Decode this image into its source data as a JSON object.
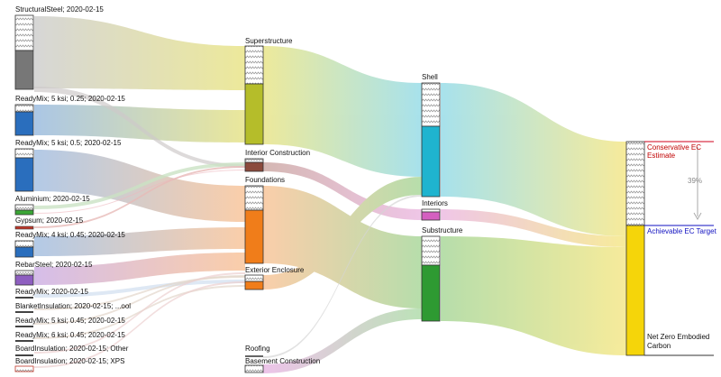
{
  "sources": [
    {
      "id": "s0",
      "label": "StructuralSteel; 2020-02-15",
      "color": "#777777"
    },
    {
      "id": "s1",
      "label": "ReadyMix; 5 ksi; 0.25; 2020-02-15",
      "color": "#2a6ebd"
    },
    {
      "id": "s2",
      "label": "ReadyMix; 5 ksi; 0.5; 2020-02-15",
      "color": "#2a6ebd"
    },
    {
      "id": "s3",
      "label": "Aluminium; 2020-02-15",
      "color": "#3aa635"
    },
    {
      "id": "s4",
      "label": "Gypsum; 2020-02-15",
      "color": "#c0392b"
    },
    {
      "id": "s5",
      "label": "ReadyMix; 4 ksi; 0.45; 2020-02-15",
      "color": "#2a6ebd"
    },
    {
      "id": "s6",
      "label": "RebarSteel; 2020-02-15",
      "color": "#8e5fc0"
    },
    {
      "id": "s7",
      "label": "ReadyMix; 2020-02-15",
      "color": "#2a6ebd"
    },
    {
      "id": "s8",
      "label": "BlanketInsulation; 2020-02-15; ...ool",
      "color": "#444444"
    },
    {
      "id": "s9",
      "label": "ReadyMix; 5 ksi; 0.45; 2020-02-15",
      "color": "#2a6ebd"
    },
    {
      "id": "s10",
      "label": "ReadyMix; 6 ksi; 0.45; 2020-02-15",
      "color": "#2a6ebd"
    },
    {
      "id": "s11",
      "label": "BoardInsulation; 2020-02-15; Other",
      "color": "#444444"
    },
    {
      "id": "s12",
      "label": "BoardInsulation; 2020-02-15; XPS",
      "color": "#c0392b"
    }
  ],
  "assemblies": [
    {
      "id": "a0",
      "label": "Superstructure",
      "color": "#b5bd2a"
    },
    {
      "id": "a1",
      "label": "Interior Construction",
      "color": "#8b4a3c"
    },
    {
      "id": "a2",
      "label": "Foundations",
      "color": "#f07d1a"
    },
    {
      "id": "a3",
      "label": "Exterior Enclosure",
      "color": "#f07d1a"
    },
    {
      "id": "a4",
      "label": "Roofing",
      "color": "#888888"
    },
    {
      "id": "a5",
      "label": "Basement Construction",
      "color": "#cc66cc"
    }
  ],
  "groups": [
    {
      "id": "g0",
      "label": "Shell",
      "color": "#1fb4cf"
    },
    {
      "id": "g1",
      "label": "Interiors",
      "color": "#d45fc0"
    },
    {
      "id": "g2",
      "label": "Substructure",
      "color": "#2e9a32"
    }
  ],
  "target": {
    "conservative_label": "Conservative EC Estimate",
    "achievable_label": "Achievable EC Target",
    "net_zero_label": "Net Zero Embodied Carbon",
    "reduction_pct": "39%",
    "conservative_color": "#d0021b",
    "achievable_color": "#1010c0",
    "target_color": "#f5d50a"
  }
}
